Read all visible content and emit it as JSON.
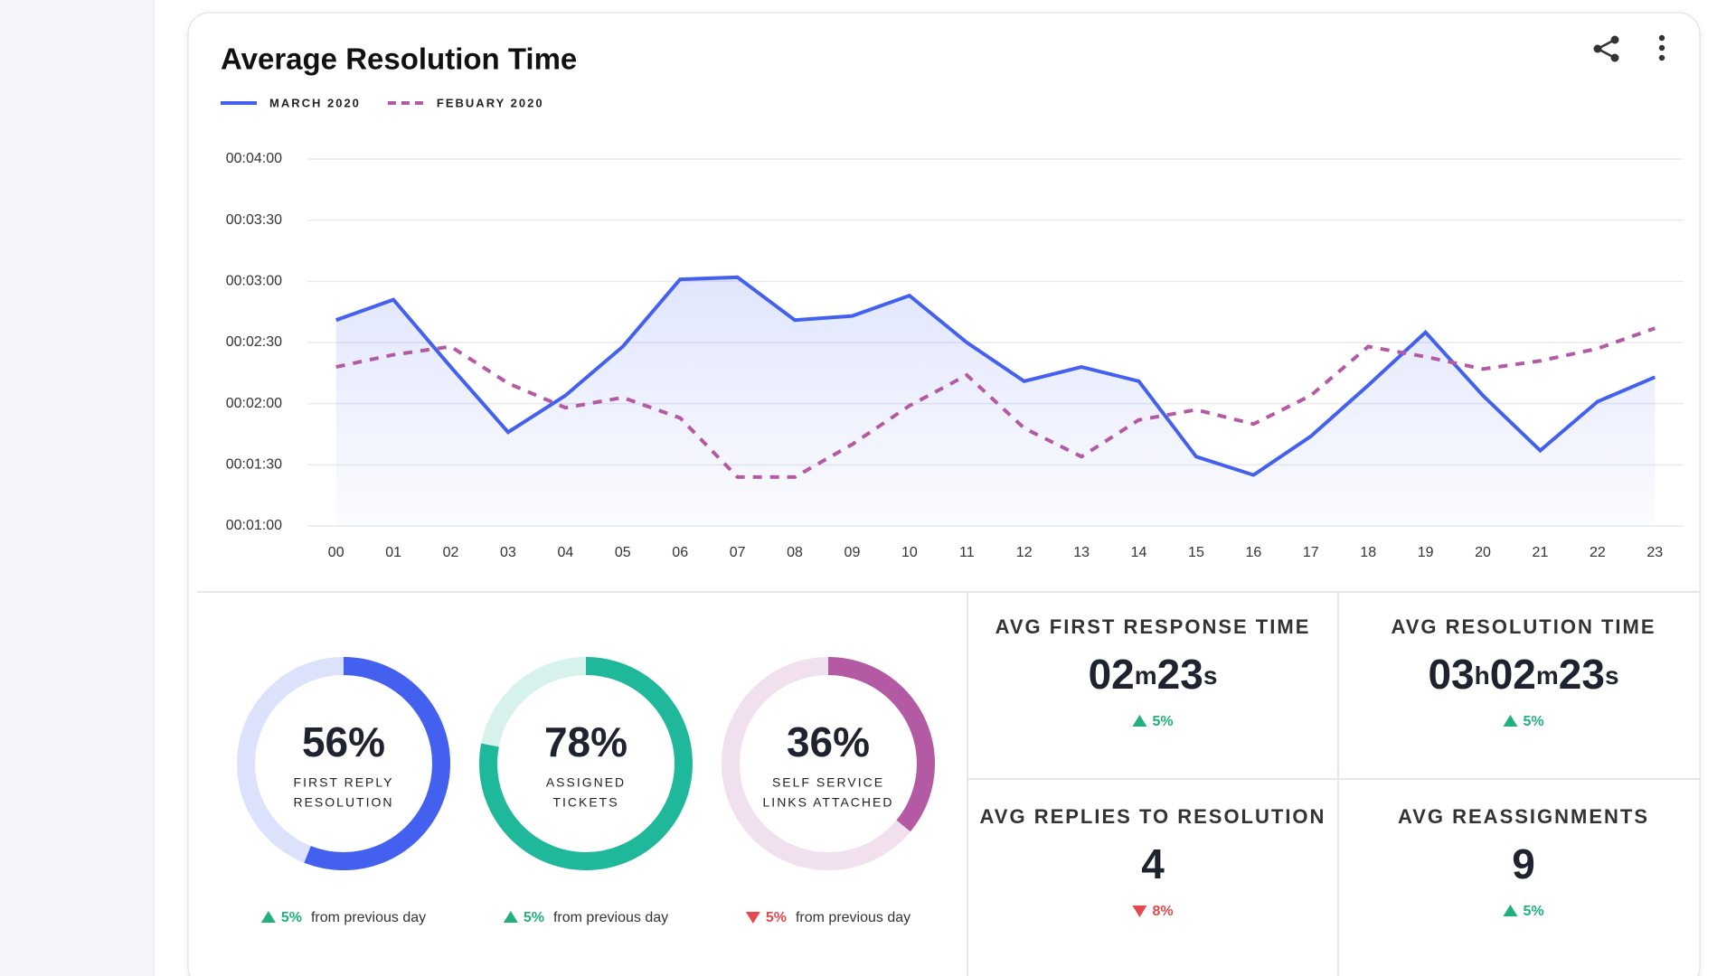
{
  "chart_data": {
    "type": "line",
    "title": "Average Resolution Time",
    "categories": [
      "00",
      "01",
      "02",
      "03",
      "04",
      "05",
      "06",
      "07",
      "08",
      "09",
      "10",
      "11",
      "12",
      "13",
      "14",
      "15",
      "16",
      "17",
      "18",
      "19",
      "20",
      "21",
      "22",
      "23"
    ],
    "ylim": [
      60,
      240
    ],
    "yticks": [
      {
        "value": 60,
        "label": "00:01:00"
      },
      {
        "value": 90,
        "label": "00:01:30"
      },
      {
        "value": 120,
        "label": "00:02:00"
      },
      {
        "value": 150,
        "label": "00:02:30"
      },
      {
        "value": 180,
        "label": "00:03:00"
      },
      {
        "value": 210,
        "label": "00:03:30"
      },
      {
        "value": 240,
        "label": "00:04:00"
      }
    ],
    "grid": true,
    "series": [
      {
        "name": "MARCH 2020",
        "color": "#4361ee",
        "dashed": false,
        "area": true,
        "values": [
          161,
          171,
          138,
          106,
          124,
          148,
          181,
          182,
          161,
          163,
          173,
          150,
          131,
          138,
          131,
          94,
          85,
          104,
          129,
          155,
          124,
          97,
          121,
          133
        ]
      },
      {
        "name": "FEBUARY 2020",
        "color": "#b45aa4",
        "dashed": true,
        "area": false,
        "values": [
          138,
          144,
          148,
          130,
          118,
          123,
          113,
          84,
          84,
          100,
          119,
          134,
          108,
          94,
          112,
          117,
          110,
          124,
          148,
          143,
          137,
          141,
          147,
          157
        ]
      }
    ]
  },
  "gauges": [
    {
      "value": 56,
      "value_label": "56%",
      "label_lines": [
        "FIRST REPLY",
        "RESOLUTION"
      ],
      "color": "#4361ee",
      "change": "5%",
      "direction": "up",
      "note": "from previous day"
    },
    {
      "value": 78,
      "value_label": "78%",
      "label_lines": [
        "ASSIGNED",
        "TICKETS"
      ],
      "color": "#1fb89a",
      "change": "5%",
      "direction": "up",
      "note": "from previous day"
    },
    {
      "value": 36,
      "value_label": "36%",
      "label_lines": [
        "SELF SERVICE",
        "LINKS ATTACHED"
      ],
      "color": "#b45aa4",
      "change": "5%",
      "direction": "down",
      "note": "from previous day"
    }
  ],
  "stats": [
    {
      "title": "AVG FIRST RESPONSE TIME",
      "value": "02m23s",
      "change": "5%",
      "direction": "up"
    },
    {
      "title": "AVG RESOLUTION TIME",
      "value": "03h02m23s",
      "change": "5%",
      "direction": "up"
    },
    {
      "title": "AVG REPLIES TO RESOLUTION",
      "value": 4,
      "change": "8%",
      "direction": "down"
    },
    {
      "title": "AVG REASSIGNMENTS",
      "value": 9,
      "change": "5%",
      "direction": "up"
    }
  ]
}
